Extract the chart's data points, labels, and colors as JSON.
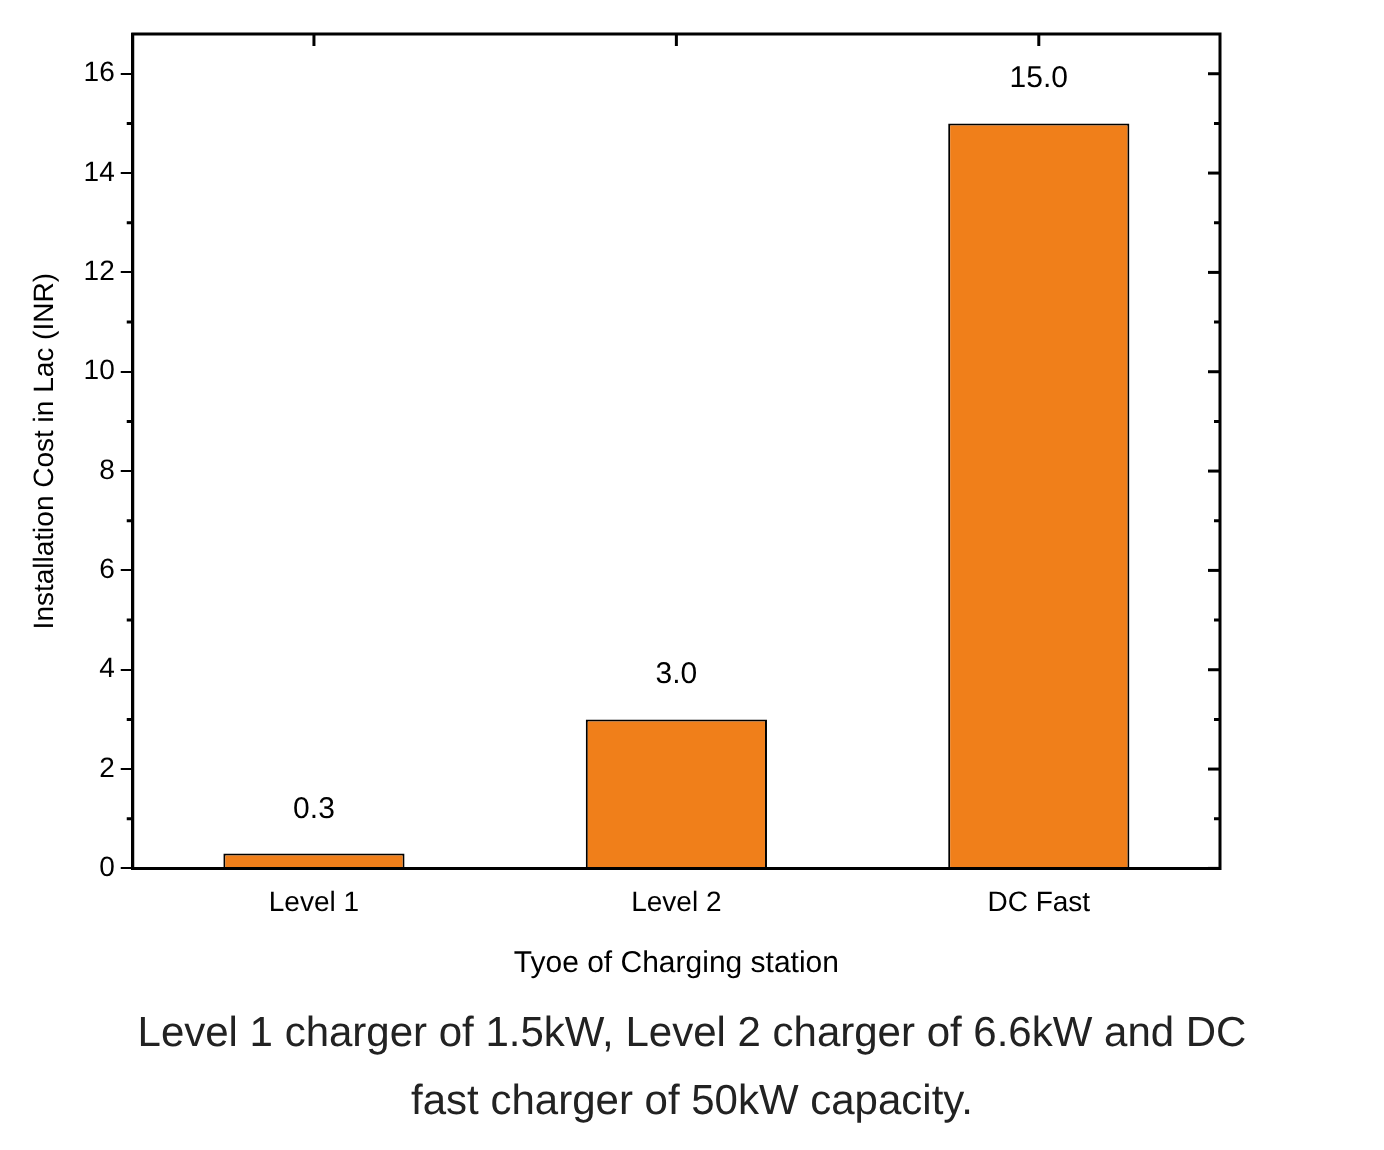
{
  "chart_data": {
    "type": "bar",
    "xlabel": "Tyoe of Charging station",
    "ylabel": "Installation Cost in Lac (INR)",
    "categories": [
      "Level 1",
      "Level 2",
      "DC Fast"
    ],
    "values": [
      0.3,
      3.0,
      15.0
    ],
    "color": "#f07f1a",
    "value_labels": [
      "0.3",
      "3.0",
      "15.0"
    ],
    "ylim": [
      0,
      16.8
    ],
    "yticks": [
      0,
      2,
      4,
      6,
      8,
      10,
      12,
      14,
      16
    ],
    "grid": false,
    "legend": false,
    "annotations": [
      "Level 1 charger of 1.5kW, Level 2 charger of 6.6kW and DC fast charger of 50kW capacity."
    ]
  }
}
